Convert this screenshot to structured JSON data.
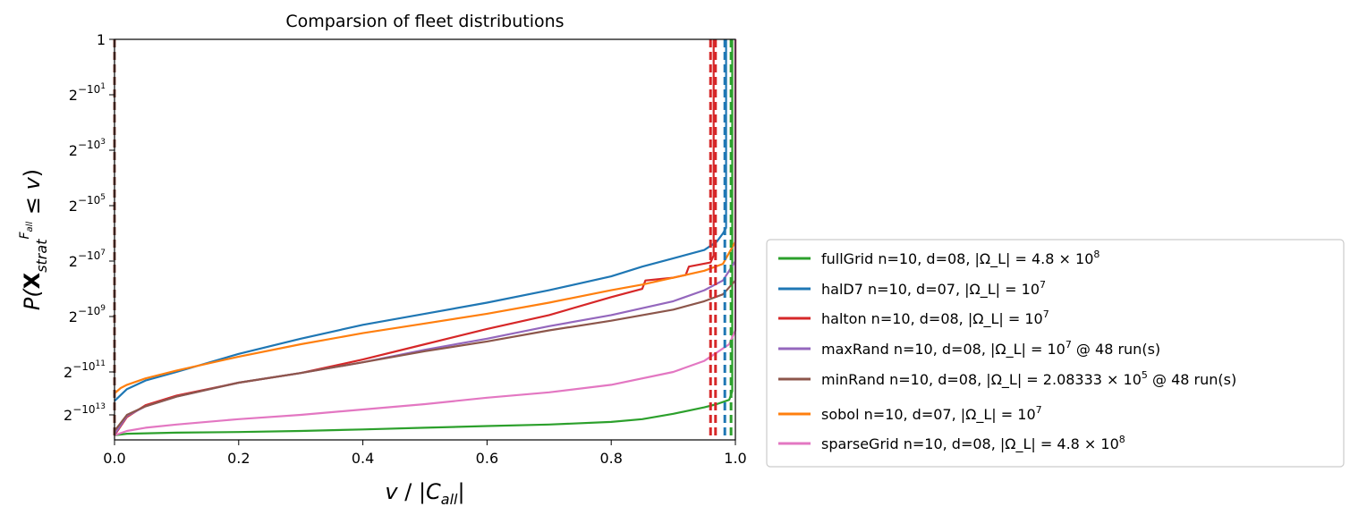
{
  "chart_data": {
    "type": "line",
    "title": "Comparsion of fleet distributions",
    "xlabel": "v / |C_all|",
    "ylabel": "P(X^{F_all}_{strat} ≤ v)",
    "xlim": [
      0.0,
      1.0
    ],
    "x_ticks": [
      "0.0",
      "0.2",
      "0.4",
      "0.6",
      "0.8",
      "1.0"
    ],
    "y_scale": "log2 (tick labels show 2^-(10^k))",
    "y_ticks": [
      {
        "base": "1",
        "exp": ""
      },
      {
        "base": "2",
        "exp": "−10",
        "sup": "1"
      },
      {
        "base": "2",
        "exp": "−10",
        "sup": "3"
      },
      {
        "base": "2",
        "exp": "−10",
        "sup": "5"
      },
      {
        "base": "2",
        "exp": "−10",
        "sup": "7"
      },
      {
        "base": "2",
        "exp": "−10",
        "sup": "9"
      },
      {
        "base": "2",
        "exp": "−10",
        "sup": "11"
      },
      {
        "base": "2",
        "exp": "−10",
        "sup": "13"
      }
    ],
    "legend_position": "outside-right",
    "grid": false,
    "series": [
      {
        "name": "fullGrid n=10, d=08, |Ω_L| = 4.8 × 10^8",
        "color": "#2ca02c",
        "x": [
          0.0,
          0.02,
          0.1,
          0.2,
          0.3,
          0.4,
          0.5,
          0.6,
          0.7,
          0.8,
          0.85,
          0.9,
          0.95,
          0.97,
          0.99,
          0.995
        ],
        "y_log10_exp": [
          13.95,
          13.88,
          13.83,
          13.8,
          13.75,
          13.68,
          13.6,
          13.52,
          13.45,
          13.33,
          13.2,
          12.95,
          12.65,
          12.5,
          12.3,
          11.9
        ],
        "cutoff": 0.995
      },
      {
        "name": "halD7 n=10, d=07, |Ω_L| = 10^7",
        "color": "#1f77b4",
        "x": [
          0.0,
          0.02,
          0.05,
          0.1,
          0.2,
          0.3,
          0.4,
          0.5,
          0.6,
          0.7,
          0.8,
          0.85,
          0.9,
          0.95,
          0.97,
          0.98,
          0.985
        ],
        "y_log10_exp": [
          12.35,
          11.8,
          11.4,
          11.0,
          10.35,
          9.8,
          9.3,
          8.9,
          8.5,
          8.05,
          7.55,
          7.2,
          6.9,
          6.6,
          6.3,
          6.0,
          5.8
        ],
        "cutoff": 0.985
      },
      {
        "name": "halton n=10, d=08, |Ω_L| = 10^7",
        "color": "#d62728",
        "x": [
          0.0,
          0.02,
          0.05,
          0.1,
          0.2,
          0.3,
          0.4,
          0.5,
          0.6,
          0.7,
          0.8,
          0.85,
          0.855,
          0.9,
          0.92,
          0.925,
          0.96,
          0.965
        ],
        "y_log10_exp": [
          13.95,
          13.1,
          12.55,
          12.1,
          11.5,
          11.05,
          10.55,
          10.0,
          9.45,
          8.95,
          8.3,
          8.0,
          7.7,
          7.6,
          7.5,
          7.2,
          7.05,
          6.8
        ],
        "cutoff": 0.965
      },
      {
        "name": "maxRand n=10, d=08, |Ω_L| = 10^7 @ 48 run(s)",
        "color": "#9467bd",
        "x": [
          0.0,
          0.02,
          0.05,
          0.1,
          0.2,
          0.3,
          0.4,
          0.5,
          0.6,
          0.7,
          0.8,
          0.9,
          0.95,
          0.98,
          1.0
        ],
        "y_log10_exp": [
          13.9,
          13.05,
          12.6,
          12.15,
          11.5,
          11.05,
          10.65,
          10.2,
          9.8,
          9.35,
          8.95,
          8.45,
          8.05,
          7.7,
          7.0
        ],
        "cutoff": 1.0
      },
      {
        "name": "minRand n=10, d=08, |Ω_L| = 2.08333 × 10^5 @ 48 run(s)",
        "color": "#8c564b",
        "x": [
          0.0,
          0.02,
          0.05,
          0.1,
          0.2,
          0.3,
          0.4,
          0.5,
          0.6,
          0.7,
          0.8,
          0.9,
          0.95,
          0.98,
          1.0
        ],
        "y_log10_exp": [
          13.75,
          13.0,
          12.6,
          12.15,
          11.5,
          11.05,
          10.65,
          10.25,
          9.9,
          9.5,
          9.15,
          8.75,
          8.45,
          8.2,
          7.7
        ],
        "cutoff": 1.0
      },
      {
        "name": "sobol n=10, d=07, |Ω_L| = 10^7",
        "color": "#ff7f0e",
        "x": [
          0.0,
          0.01,
          0.02,
          0.05,
          0.1,
          0.2,
          0.3,
          0.4,
          0.5,
          0.6,
          0.7,
          0.8,
          0.85,
          0.9,
          0.95,
          0.98,
          1.0
        ],
        "y_log10_exp": [
          12.0,
          11.75,
          11.6,
          11.3,
          10.95,
          10.45,
          10.0,
          9.6,
          9.25,
          8.9,
          8.5,
          8.05,
          7.85,
          7.6,
          7.35,
          7.1,
          6.3
        ],
        "cutoff": 1.0
      },
      {
        "name": "sparseGrid n=10, d=08, |Ω_L| = 4.8 × 10^8",
        "color": "#e377c2",
        "x": [
          0.0,
          0.02,
          0.05,
          0.1,
          0.2,
          0.3,
          0.4,
          0.5,
          0.6,
          0.7,
          0.8,
          0.9,
          0.95,
          0.97,
          0.99,
          1.0
        ],
        "y_log10_exp": [
          13.95,
          13.75,
          13.6,
          13.45,
          13.2,
          13.0,
          12.75,
          12.5,
          12.2,
          11.95,
          11.6,
          11.0,
          10.6,
          10.3,
          10.0,
          9.5
        ],
        "cutoff": 1.0
      }
    ],
    "dashed_verticals": [
      {
        "x": 0.0,
        "color": "#8c564b"
      },
      {
        "x": 0.96,
        "color": "#d62728"
      },
      {
        "x": 0.968,
        "color": "#d62728"
      },
      {
        "x": 0.983,
        "color": "#1f77b4"
      },
      {
        "x": 0.993,
        "color": "#2ca02c"
      }
    ]
  }
}
